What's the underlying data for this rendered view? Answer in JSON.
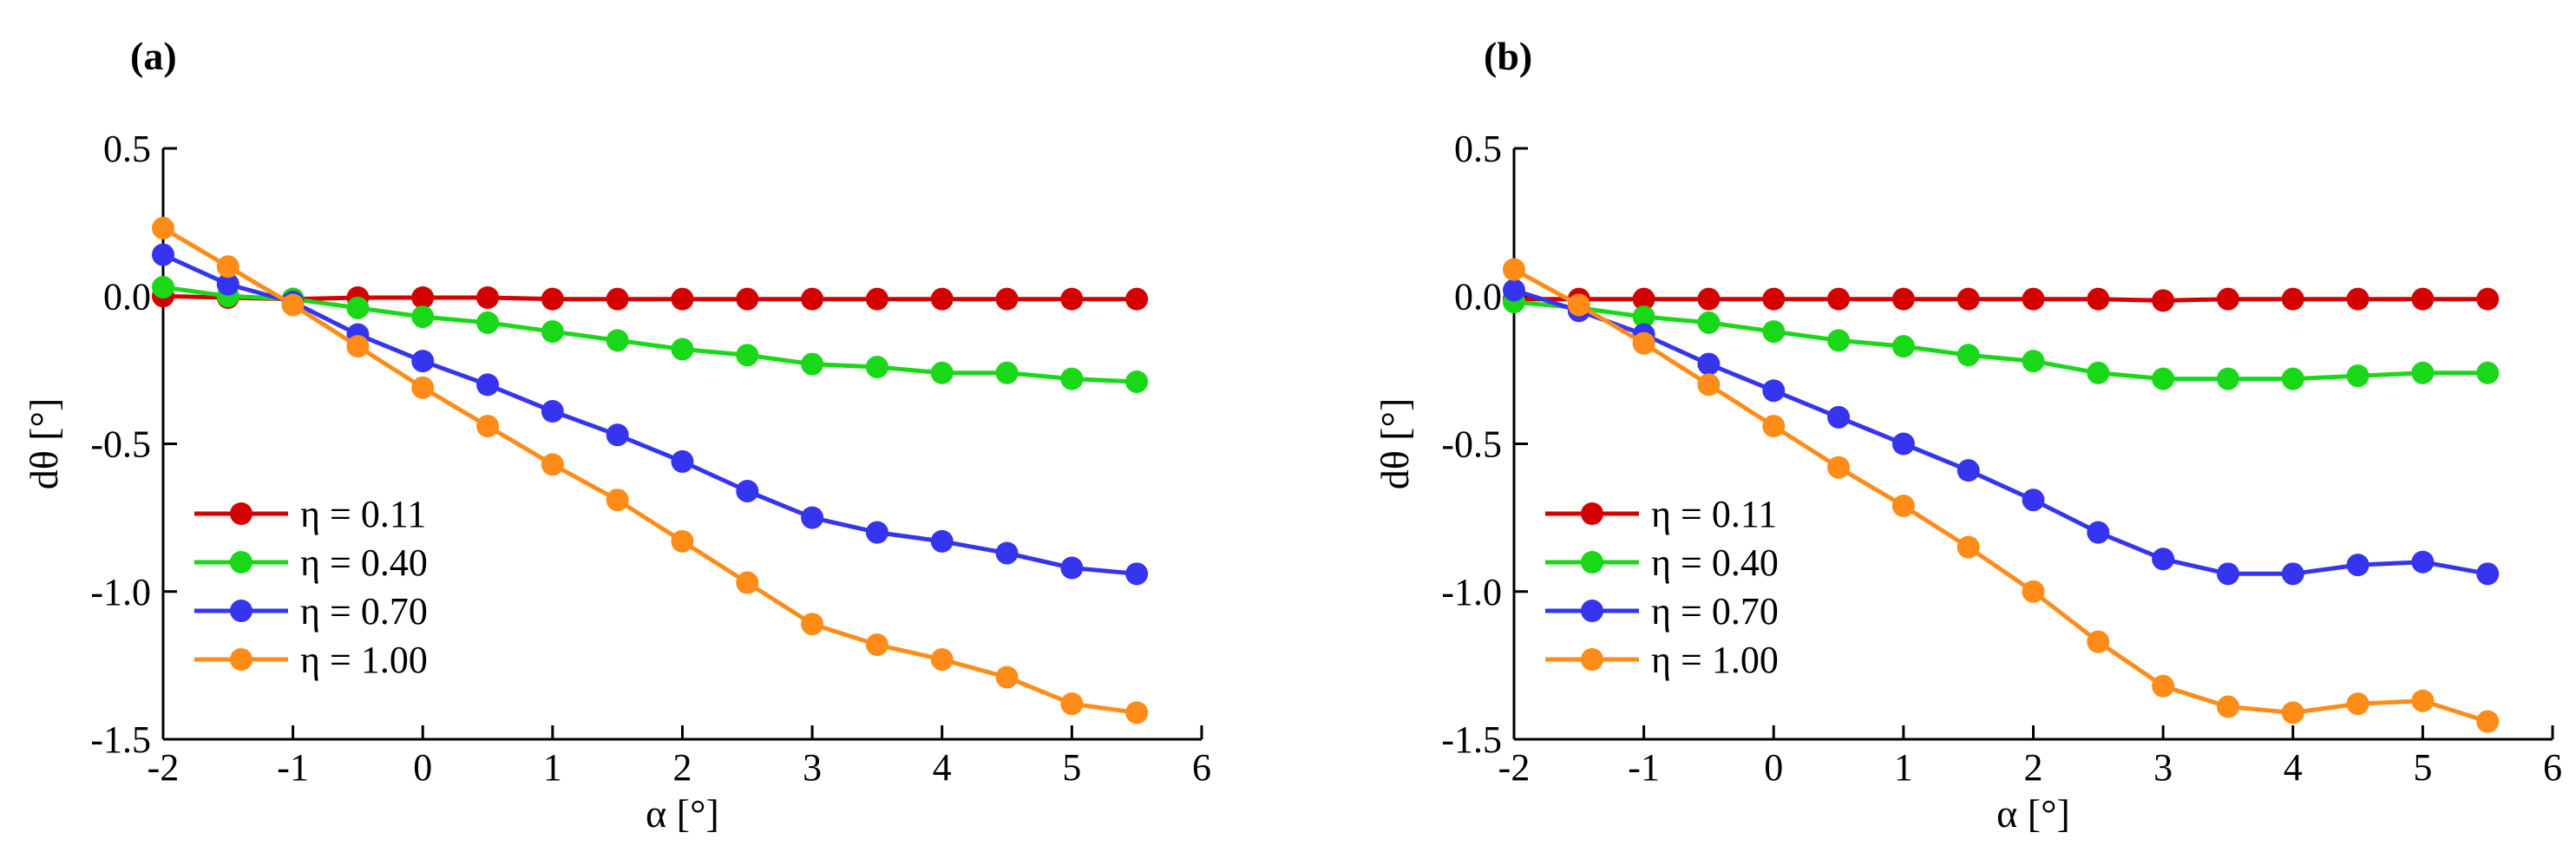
{
  "chart_data": [
    {
      "type": "line",
      "panel_label": "(a)",
      "xlabel": "α [°]",
      "ylabel": "dθ [°]",
      "xlim": [
        -2,
        6
      ],
      "ylim": [
        -1.5,
        0.5
      ],
      "xticks": [
        -2,
        -1,
        0,
        1,
        2,
        3,
        4,
        5,
        6
      ],
      "xtick_labels": [
        "-2",
        "-1",
        "0",
        "1",
        "2",
        "3",
        "4",
        "5",
        "6"
      ],
      "yticks": [
        0.5,
        0,
        -0.5,
        -1,
        -1.5
      ],
      "ytick_labels": [
        "0.5",
        "0.0",
        "-0.5",
        "-1.0",
        "-1.5"
      ],
      "grid": false,
      "legend_position": "bottom-left",
      "x": [
        -2,
        -1.5,
        -1,
        -0.5,
        0,
        0.5,
        1,
        1.5,
        2,
        2.5,
        3,
        3.5,
        4,
        4.5,
        5,
        5.5
      ],
      "series": [
        {
          "name": "η = 0.11",
          "color": "#d40000",
          "values": [
            0.0,
            -0.005,
            -0.01,
            -0.005,
            -0.005,
            -0.005,
            -0.01,
            -0.01,
            -0.01,
            -0.01,
            -0.01,
            -0.01,
            -0.01,
            -0.01,
            -0.01,
            -0.01
          ]
        },
        {
          "name": "η = 0.40",
          "color": "#18d818",
          "values": [
            0.03,
            0.0,
            -0.01,
            -0.04,
            -0.07,
            -0.09,
            -0.12,
            -0.15,
            -0.18,
            -0.2,
            -0.23,
            -0.24,
            -0.26,
            -0.26,
            -0.28,
            -0.29
          ]
        },
        {
          "name": "η = 0.70",
          "color": "#3535f0",
          "values": [
            0.14,
            0.04,
            -0.02,
            -0.13,
            -0.22,
            -0.3,
            -0.39,
            -0.47,
            -0.56,
            -0.66,
            -0.75,
            -0.8,
            -0.83,
            -0.87,
            -0.92,
            -0.94
          ]
        },
        {
          "name": "η = 1.00",
          "color": "#ff8c18",
          "values": [
            0.23,
            0.1,
            -0.03,
            -0.17,
            -0.31,
            -0.44,
            -0.57,
            -0.69,
            -0.83,
            -0.97,
            -1.11,
            -1.18,
            -1.23,
            -1.29,
            -1.38,
            -1.41
          ]
        }
      ]
    },
    {
      "type": "line",
      "panel_label": "(b)",
      "xlabel": "α [°]",
      "ylabel": "dθ [°]",
      "xlim": [
        -2,
        6
      ],
      "ylim": [
        -1.5,
        0.5
      ],
      "xticks": [
        -2,
        -1,
        0,
        1,
        2,
        3,
        4,
        5,
        6
      ],
      "xtick_labels": [
        "-2",
        "-1",
        "0",
        "1",
        "2",
        "3",
        "4",
        "5",
        "6"
      ],
      "yticks": [
        0.5,
        0,
        -0.5,
        -1,
        -1.5
      ],
      "ytick_labels": [
        "0.5",
        "0.0",
        "-0.5",
        "-1.0",
        "-1.5"
      ],
      "grid": false,
      "legend_position": "bottom-left",
      "x": [
        -2,
        -1.5,
        -1,
        -0.5,
        0,
        0.5,
        1,
        1.5,
        2,
        2.5,
        3,
        3.5,
        4,
        4.5,
        5,
        5.5
      ],
      "series": [
        {
          "name": "η = 0.11",
          "color": "#d40000",
          "values": [
            -0.01,
            -0.01,
            -0.01,
            -0.01,
            -0.01,
            -0.01,
            -0.01,
            -0.01,
            -0.01,
            -0.01,
            -0.015,
            -0.01,
            -0.01,
            -0.01,
            -0.01,
            -0.01
          ]
        },
        {
          "name": "η = 0.40",
          "color": "#18d818",
          "values": [
            -0.02,
            -0.04,
            -0.07,
            -0.09,
            -0.12,
            -0.15,
            -0.17,
            -0.2,
            -0.22,
            -0.26,
            -0.28,
            -0.28,
            -0.28,
            -0.27,
            -0.26,
            -0.26
          ]
        },
        {
          "name": "η = 0.70",
          "color": "#3535f0",
          "values": [
            0.02,
            -0.05,
            -0.13,
            -0.23,
            -0.32,
            -0.41,
            -0.5,
            -0.59,
            -0.69,
            -0.8,
            -0.89,
            -0.94,
            -0.94,
            -0.91,
            -0.9,
            -0.94
          ]
        },
        {
          "name": "η = 1.00",
          "color": "#ff8c18",
          "values": [
            0.09,
            -0.03,
            -0.16,
            -0.3,
            -0.44,
            -0.58,
            -0.71,
            -0.85,
            -1.0,
            -1.17,
            -1.32,
            -1.39,
            -1.41,
            -1.38,
            -1.37,
            -1.44
          ]
        }
      ]
    }
  ]
}
